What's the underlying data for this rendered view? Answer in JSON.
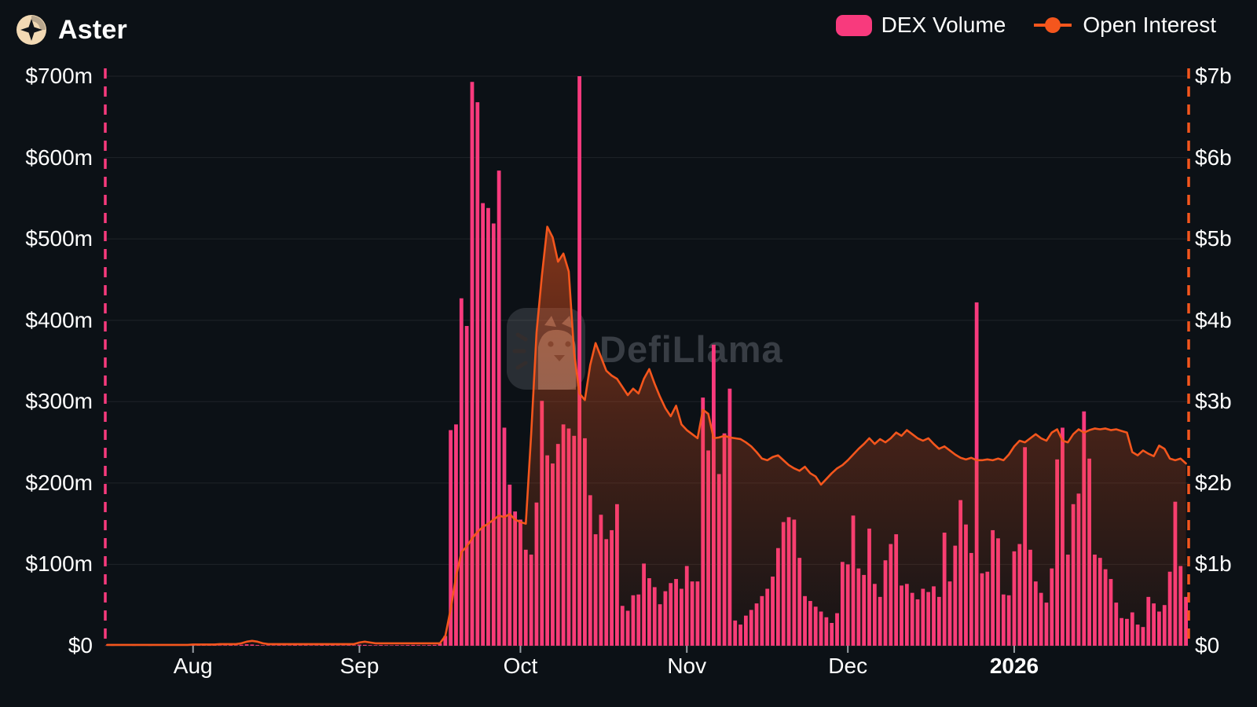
{
  "header": {
    "title": "Aster"
  },
  "legend": {
    "items": [
      {
        "label": "DEX Volume",
        "type": "bar",
        "color": "#f83a7d"
      },
      {
        "label": "Open Interest",
        "type": "line",
        "color": "#f4561d"
      }
    ]
  },
  "watermark": {
    "text": "DefiLlama"
  },
  "colors": {
    "background": "#0c1116",
    "bar_pink": "#f83a7d",
    "line_orange": "#f4561d",
    "grid": "rgba(255,255,255,0.08)",
    "axis_text": "#ffffff",
    "tick_mark": "#9aa0a6"
  },
  "chart_data": {
    "type": "mixed",
    "subtypes": [
      "bar",
      "area-line"
    ],
    "start_date": "2025-07-16",
    "frequency": "daily",
    "grid": true,
    "legend_position": "top-right",
    "left_axis": {
      "label": "DEX Volume",
      "unit": "USD millions",
      "ticks": [
        "$0",
        "$100m",
        "$200m",
        "$300m",
        "$400m",
        "$500m",
        "$600m",
        "$700m"
      ],
      "range": [
        0,
        700
      ]
    },
    "right_axis": {
      "label": "Open Interest",
      "unit": "USD billions",
      "ticks": [
        "$0",
        "$1b",
        "$2b",
        "$3b",
        "$4b",
        "$5b",
        "$6b",
        "$7b"
      ],
      "range": [
        0,
        7
      ]
    },
    "x_month_ticks": [
      {
        "label": "Aug",
        "day_index": 16,
        "bold": false
      },
      {
        "label": "Sep",
        "day_index": 47,
        "bold": false
      },
      {
        "label": "Oct",
        "day_index": 77,
        "bold": false
      },
      {
        "label": "Nov",
        "day_index": 108,
        "bold": false
      },
      {
        "label": "Dec",
        "day_index": 138,
        "bold": false
      },
      {
        "label": "2026",
        "day_index": 169,
        "bold": true
      }
    ],
    "series": [
      {
        "name": "DEX Volume",
        "type": "bar",
        "axis": "left",
        "unit": "USD millions",
        "color": "#f83a7d",
        "values": [
          0.4,
          0.3,
          0.5,
          0.4,
          0.6,
          0.3,
          0.4,
          0.5,
          0.3,
          0.4,
          0.6,
          0.5,
          0.4,
          0.7,
          0.5,
          0.4,
          0.8,
          0.6,
          0.5,
          0.9,
          0.7,
          0.5,
          0.6,
          0.8,
          0.6,
          1.2,
          1.8,
          1.5,
          0.9,
          0.7,
          0.6,
          0.5,
          0.7,
          0.6,
          0.5,
          0.8,
          0.6,
          0.7,
          0.5,
          0.6,
          0.9,
          0.7,
          0.8,
          0.6,
          0.5,
          0.7,
          0.6,
          1.4,
          1.1,
          0.8,
          0.7,
          0.9,
          0.7,
          0.6,
          0.8,
          0.7,
          0.9,
          1.0,
          0.8,
          0.7,
          0.9,
          1.1,
          3,
          12,
          265,
          272,
          427,
          393,
          693,
          668,
          544,
          538,
          519,
          584,
          268,
          198,
          165,
          155,
          118,
          112,
          176,
          301,
          234,
          224,
          248,
          272,
          267,
          258,
          700,
          255,
          185,
          137,
          161,
          131,
          142,
          174,
          49,
          43,
          62,
          63,
          101,
          83,
          72,
          51,
          67,
          77,
          82,
          70,
          98,
          79,
          79,
          305,
          240,
          370,
          211,
          261,
          316,
          31,
          26,
          37,
          44,
          52,
          61,
          70,
          85,
          120,
          152,
          158,
          155,
          108,
          61,
          55,
          48,
          42,
          35,
          28,
          40,
          103,
          100,
          160,
          95,
          87,
          144,
          76,
          60,
          105,
          125,
          137,
          74,
          76,
          65,
          57,
          70,
          66,
          73,
          60,
          139,
          79,
          123,
          179,
          149,
          114,
          422,
          89,
          91,
          142,
          132,
          63,
          62,
          116,
          125,
          244,
          118,
          79,
          65,
          53,
          95,
          229,
          268,
          112,
          174,
          187,
          288,
          230,
          112,
          108,
          94,
          82,
          53,
          34,
          33,
          41,
          26,
          23,
          60,
          52,
          42,
          50,
          91,
          177,
          98,
          60
        ]
      },
      {
        "name": "Open Interest",
        "type": "line",
        "axis": "right",
        "unit": "USD billions",
        "color": "#f4561d",
        "values": [
          0.01,
          0.01,
          0.01,
          0.01,
          0.01,
          0.01,
          0.01,
          0.01,
          0.01,
          0.01,
          0.01,
          0.01,
          0.01,
          0.01,
          0.01,
          0.01,
          0.015,
          0.015,
          0.015,
          0.015,
          0.015,
          0.02,
          0.02,
          0.02,
          0.02,
          0.03,
          0.05,
          0.06,
          0.05,
          0.03,
          0.02,
          0.02,
          0.02,
          0.02,
          0.02,
          0.02,
          0.02,
          0.02,
          0.02,
          0.02,
          0.02,
          0.02,
          0.02,
          0.02,
          0.02,
          0.02,
          0.02,
          0.04,
          0.05,
          0.04,
          0.03,
          0.03,
          0.03,
          0.03,
          0.03,
          0.03,
          0.03,
          0.03,
          0.03,
          0.03,
          0.03,
          0.03,
          0.03,
          0.12,
          0.45,
          0.85,
          1.15,
          1.22,
          1.32,
          1.4,
          1.46,
          1.5,
          1.55,
          1.6,
          1.58,
          1.62,
          1.55,
          1.52,
          1.5,
          2.6,
          3.85,
          4.55,
          5.15,
          5.02,
          4.72,
          4.82,
          4.6,
          3.6,
          3.1,
          3.02,
          3.45,
          3.72,
          3.55,
          3.38,
          3.32,
          3.28,
          3.18,
          3.08,
          3.16,
          3.1,
          3.28,
          3.4,
          3.22,
          3.06,
          2.92,
          2.82,
          2.95,
          2.72,
          2.65,
          2.6,
          2.55,
          2.9,
          2.85,
          2.55,
          2.56,
          2.58,
          2.56,
          2.55,
          2.54,
          2.5,
          2.45,
          2.38,
          2.3,
          2.28,
          2.32,
          2.34,
          2.28,
          2.22,
          2.18,
          2.15,
          2.2,
          2.12,
          2.08,
          1.98,
          2.05,
          2.12,
          2.18,
          2.22,
          2.28,
          2.35,
          2.42,
          2.48,
          2.55,
          2.48,
          2.54,
          2.5,
          2.55,
          2.62,
          2.58,
          2.65,
          2.6,
          2.55,
          2.52,
          2.55,
          2.48,
          2.42,
          2.45,
          2.4,
          2.35,
          2.31,
          2.29,
          2.31,
          2.28,
          2.28,
          2.29,
          2.28,
          2.3,
          2.28,
          2.35,
          2.45,
          2.52,
          2.5,
          2.55,
          2.6,
          2.55,
          2.52,
          2.62,
          2.66,
          2.52,
          2.5,
          2.6,
          2.66,
          2.62,
          2.65,
          2.67,
          2.66,
          2.67,
          2.65,
          2.66,
          2.64,
          2.62,
          2.38,
          2.34,
          2.4,
          2.36,
          2.33,
          2.46,
          2.42,
          2.3,
          2.28,
          2.3,
          2.24
        ]
      }
    ]
  }
}
